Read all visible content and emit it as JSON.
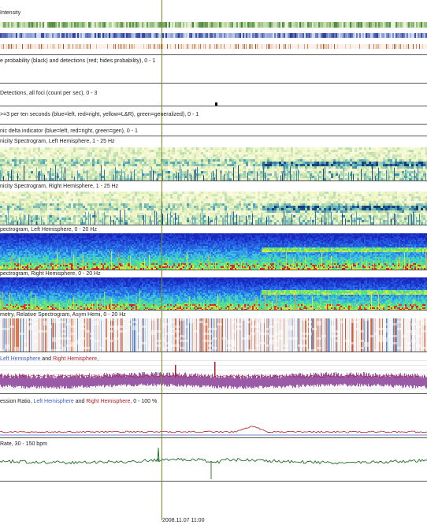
{
  "panels": {
    "intensity": {
      "title": "Intensity"
    },
    "seizure_prob": {
      "title": "e probability (black) and detections (red; hides probability),  0 - 1"
    },
    "detections": {
      "title": "Detections, all foci (count per sec), 0 - 3"
    },
    "ten_sec": {
      "title": " >=3 per ten seconds (blue=left, red=right, yellow=L&R), green=generalized),  0 - 1"
    },
    "delta": {
      "title": "nic delta indicator (blue=left, red=right, green=gen),  0 - 1"
    },
    "rhythm_left": {
      "title": "nicity Spectrogram, Left Hemisphere, 1 - 25 Hz"
    },
    "rhythm_right": {
      "title": "nicity Spectrogram, Right Hemisphere, 1 - 25 Hz"
    },
    "fft_left": {
      "title": "pectrogram, Left Hemisphere, 0 - 20 Hz"
    },
    "fft_right": {
      "title": "pectrogram, Right Hemisphere, 0 - 20 Hz"
    },
    "asym": {
      "title": "metry, Relative Spectrogram, Asym Hemi, 0 - 20 Hz"
    },
    "aeeg": {
      "title_left": "Left Hemisphere",
      "title_and": " and ",
      "title_right": "Right Hemisphere,"
    },
    "suppression": {
      "title_prefix": "ession Ratio, ",
      "title_left": "Left Hemisphere",
      "title_and": " and ",
      "title_right": "Right Hemisphere,",
      "title_suffix": "  0 - 100 %"
    },
    "heart_rate": {
      "title": "Rate, 30 - 150 bpm"
    }
  },
  "cursor": {
    "time_label": "2008.11.07 11:00"
  },
  "colors": {
    "left": "#3c5fc4",
    "right": "#b21e2a",
    "heart_rate": "#1f6e24",
    "aeeg": "#9b5aa8",
    "cursor": "#7a8a2a"
  }
}
